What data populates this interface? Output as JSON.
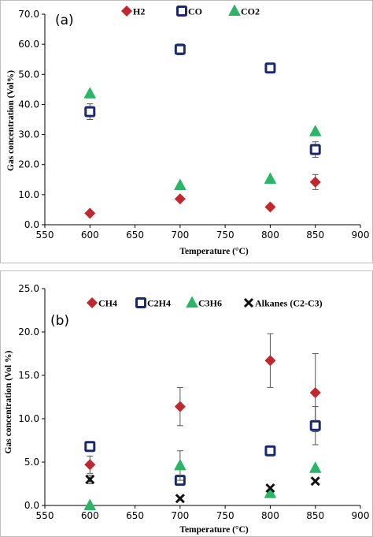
{
  "chart_data": [
    {
      "type": "scatter",
      "panel_label": "(a)",
      "xlabel": "Temperature (°C)",
      "ylabel": "Gas concentration (Vol%)",
      "xlim": [
        550,
        900
      ],
      "ylim": [
        0,
        70
      ],
      "xticks": [
        "550",
        "600",
        "650",
        "700",
        "750",
        "800",
        "850",
        "900"
      ],
      "yticks": [
        "0.0",
        "10.0",
        "20.0",
        "30.0",
        "40.0",
        "50.0",
        "60.0",
        "70.0"
      ],
      "x": [
        600,
        700,
        800,
        850
      ],
      "legend_position": "top",
      "grid": false,
      "series": [
        {
          "name": "H2",
          "marker": "diamond",
          "color": "#c0282d",
          "values": [
            3.8,
            8.6,
            5.9,
            14.2
          ],
          "err": [
            0,
            0,
            0,
            2.5
          ]
        },
        {
          "name": "CO",
          "marker": "square",
          "color": "#1b2a6b",
          "values": [
            37.6,
            58.3,
            52.1,
            25.0
          ],
          "err": [
            2.6,
            1.8,
            0,
            2.6
          ]
        },
        {
          "name": "CO2",
          "marker": "triangle",
          "color": "#2bb566",
          "values": [
            43.6,
            13.1,
            15.2,
            31.0
          ],
          "err": [
            0,
            0,
            0,
            0
          ]
        }
      ]
    },
    {
      "type": "scatter",
      "panel_label": "(b)",
      "xlabel": "Temperature (°C)",
      "ylabel": "Gas concentration (Vol %)",
      "xlim": [
        550,
        900
      ],
      "ylim": [
        0,
        25
      ],
      "xticks": [
        "550",
        "600",
        "650",
        "700",
        "750",
        "800",
        "850",
        "900"
      ],
      "yticks": [
        "0.0",
        "5.0",
        "10.0",
        "15.0",
        "20.0",
        "25.0"
      ],
      "x": [
        600,
        700,
        800,
        850
      ],
      "legend_position": "top",
      "grid": false,
      "series": [
        {
          "name": "CH4",
          "marker": "diamond",
          "color": "#c0282d",
          "values": [
            4.7,
            11.4,
            16.7,
            13.0
          ],
          "err": [
            1.0,
            2.2,
            3.1,
            4.5
          ]
        },
        {
          "name": "C2H4",
          "marker": "square",
          "color": "#1b2a6b",
          "values": [
            6.8,
            2.9,
            6.3,
            9.2
          ],
          "err": [
            0,
            0,
            0,
            2.2
          ]
        },
        {
          "name": "C3H6",
          "marker": "triangle",
          "color": "#2bb566",
          "values": [
            0.0,
            4.6,
            1.4,
            4.3
          ],
          "err": [
            0,
            1.7,
            0,
            0
          ]
        },
        {
          "name": "Alkanes (C2-C3)",
          "marker": "cross",
          "color": "#111111",
          "values": [
            3.0,
            0.8,
            2.0,
            2.8
          ],
          "err": [
            0.5,
            0,
            0,
            0
          ]
        }
      ]
    }
  ]
}
